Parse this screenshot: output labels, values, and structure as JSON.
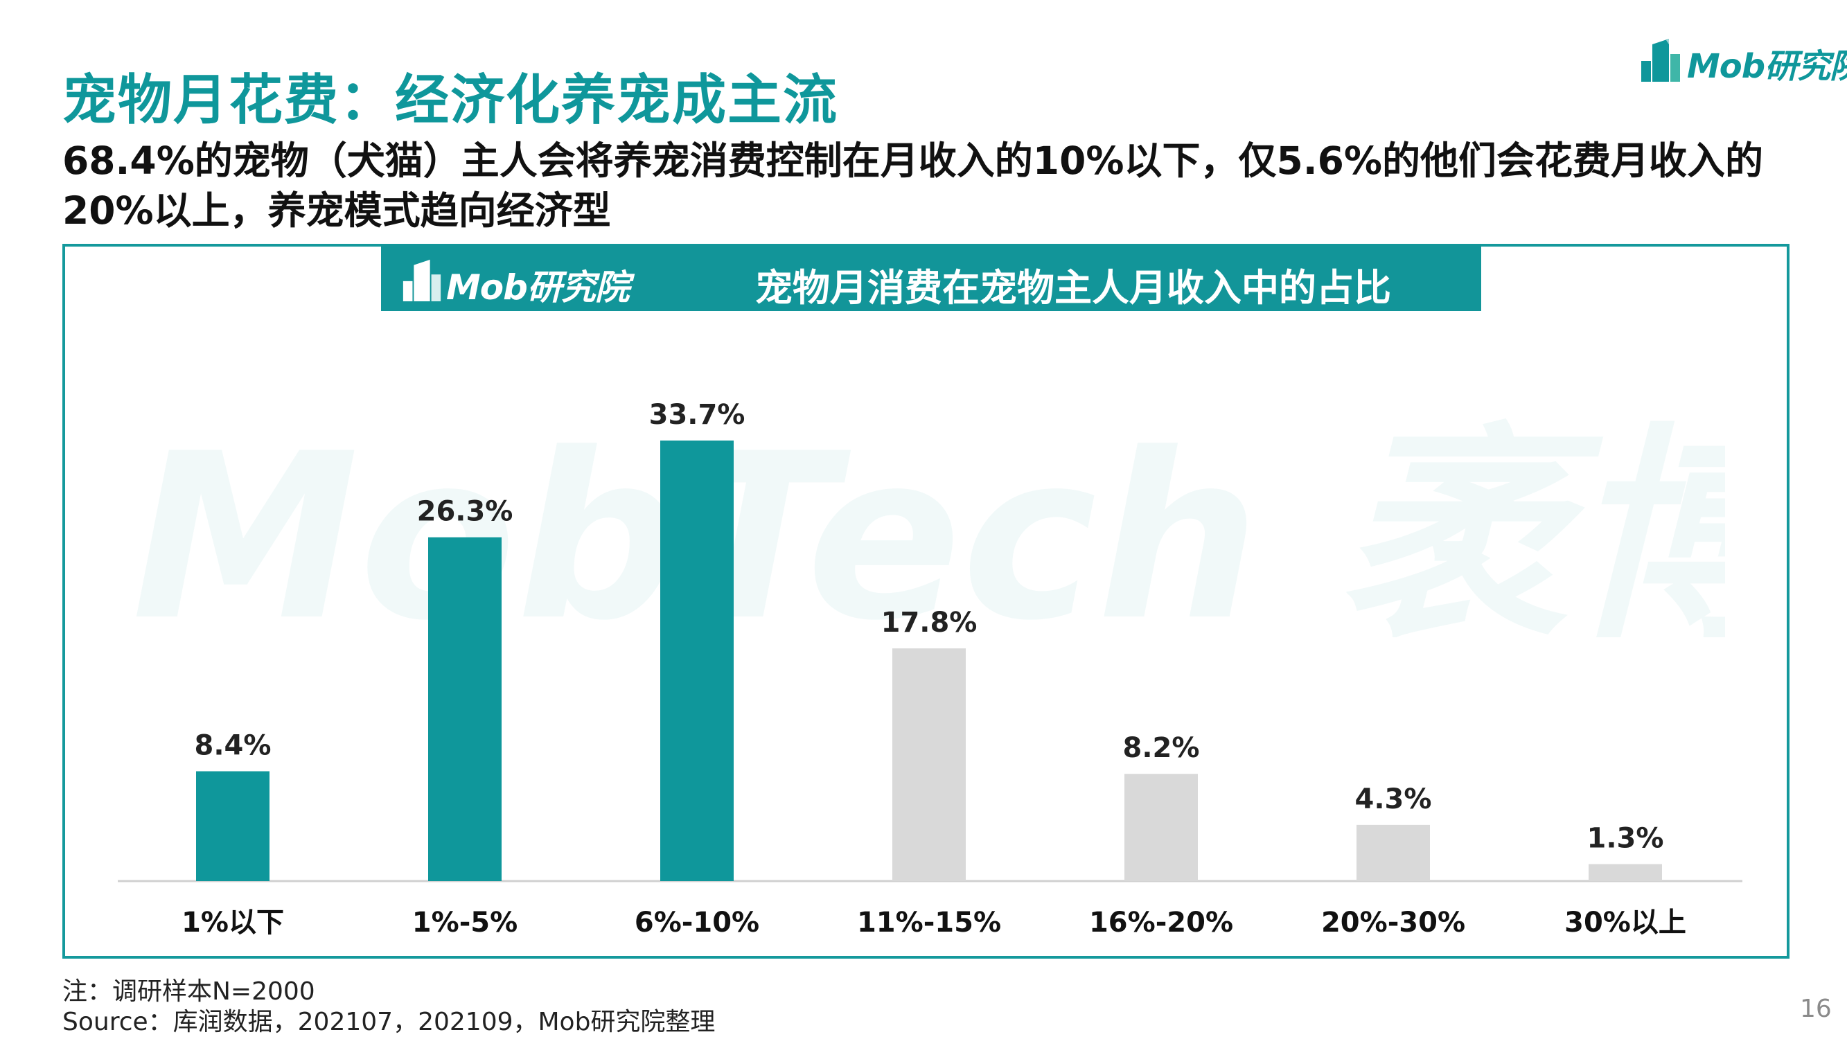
{
  "slide": {
    "title": "宠物月花费：经济化养宠成主流",
    "subtitle": "68.4%的宠物（犬猫）主人会将养宠消费控制在月收入的10%以下，仅5.6%的他们会花费月收入的20%以上，养宠模式趋向经济型",
    "brand_logo_text": "Mob研究院",
    "watermark_text": "MobTech 袤博",
    "footnote_note": "注：调研样本N=2000",
    "footnote_source": "Source：库润数据，202107，202109，Mob研究院整理",
    "page_number": "16"
  },
  "colors": {
    "accent": "#0f979b",
    "highlight_bar": "#0f979b",
    "muted_bar": "#d9d9d9",
    "frame": "#14999c"
  },
  "chart_data": {
    "type": "bar",
    "title": "宠物月消费在宠物主人月收入中的占比",
    "categories": [
      "1%以下",
      "1%-5%",
      "6%-10%",
      "11%-15%",
      "16%-20%",
      "20%-30%",
      "30%以上"
    ],
    "values": [
      8.4,
      26.3,
      33.7,
      17.8,
      8.2,
      4.3,
      1.3
    ],
    "value_labels": [
      "8.4%",
      "26.3%",
      "33.7%",
      "17.8%",
      "8.2%",
      "4.3%",
      "1.3%"
    ],
    "highlighted": [
      true,
      true,
      true,
      false,
      false,
      false,
      false
    ],
    "unit": "%",
    "ylim": [
      0,
      33.7
    ],
    "grid": false,
    "legend": "none"
  }
}
